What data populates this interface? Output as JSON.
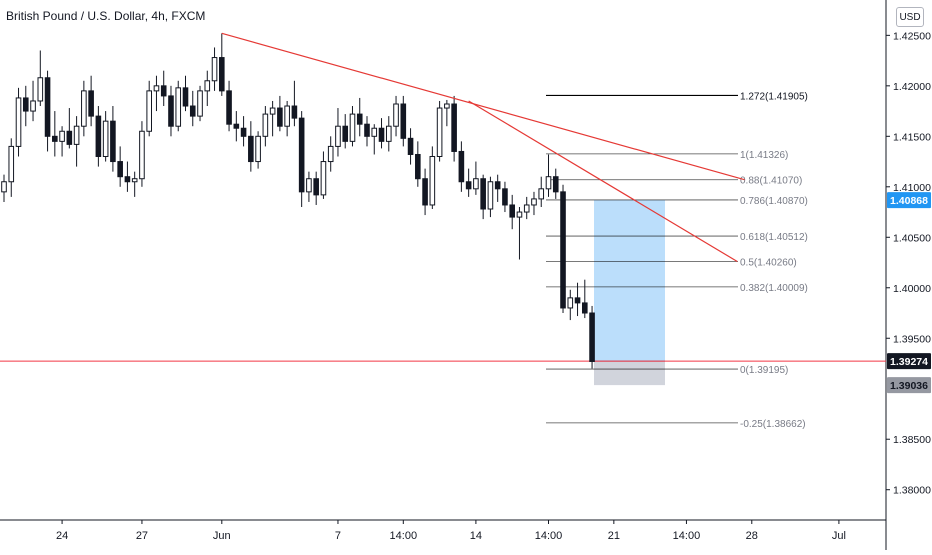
{
  "header": {
    "title": "British Pound / U.S. Dollar, 4h, FXCM",
    "currency": "USD"
  },
  "chart_data": {
    "type": "candlestick",
    "symbol": "GBPUSD",
    "interval": "4h",
    "ylim": [
      1.377,
      1.4285
    ],
    "y_ticks": [
      "1.42500",
      "1.42000",
      "1.41500",
      "1.41000",
      "1.40500",
      "1.40000",
      "1.39500",
      "1.38500",
      "1.38000"
    ],
    "x_ticks": [
      {
        "label": "24",
        "i": 8
      },
      {
        "label": "27",
        "i": 19
      },
      {
        "label": "Jun",
        "i": 30
      },
      {
        "label": "7",
        "i": 46
      },
      {
        "label": "14:00",
        "i": 55
      },
      {
        "label": "14",
        "i": 65
      },
      {
        "label": "14:00",
        "i": 75
      },
      {
        "label": "21",
        "i": 84
      },
      {
        "label": "14:00",
        "i": 94
      },
      {
        "label": "28",
        "i": 103
      },
      {
        "label": "Jul",
        "i": 115
      }
    ],
    "ohlc": [
      [
        1.4095,
        1.4112,
        1.4085,
        1.4105
      ],
      [
        1.4105,
        1.4148,
        1.409,
        1.414
      ],
      [
        1.414,
        1.4198,
        1.413,
        1.4188
      ],
      [
        1.4188,
        1.42,
        1.416,
        1.4175
      ],
      [
        1.4175,
        1.4205,
        1.4165,
        1.4185
      ],
      [
        1.4185,
        1.4235,
        1.418,
        1.4208
      ],
      [
        1.4208,
        1.4215,
        1.4135,
        1.415
      ],
      [
        1.415,
        1.4175,
        1.413,
        1.4145
      ],
      [
        1.4145,
        1.416,
        1.413,
        1.4155
      ],
      [
        1.4155,
        1.4178,
        1.4138,
        1.4142
      ],
      [
        1.4142,
        1.417,
        1.412,
        1.416
      ],
      [
        1.416,
        1.4205,
        1.415,
        1.4195
      ],
      [
        1.4195,
        1.421,
        1.416,
        1.417
      ],
      [
        1.417,
        1.418,
        1.412,
        1.413
      ],
      [
        1.413,
        1.4175,
        1.4125,
        1.4165
      ],
      [
        1.4165,
        1.418,
        1.4115,
        1.4125
      ],
      [
        1.4125,
        1.414,
        1.41,
        1.411
      ],
      [
        1.411,
        1.4125,
        1.4095,
        1.4105
      ],
      [
        1.4105,
        1.4115,
        1.409,
        1.4108
      ],
      [
        1.4108,
        1.4165,
        1.41,
        1.4155
      ],
      [
        1.4155,
        1.4205,
        1.415,
        1.4195
      ],
      [
        1.4195,
        1.421,
        1.4175,
        1.42
      ],
      [
        1.42,
        1.4215,
        1.418,
        1.419
      ],
      [
        1.419,
        1.42,
        1.415,
        1.416
      ],
      [
        1.416,
        1.4205,
        1.4155,
        1.4198
      ],
      [
        1.4198,
        1.421,
        1.4175,
        1.418
      ],
      [
        1.418,
        1.4195,
        1.416,
        1.417
      ],
      [
        1.417,
        1.42,
        1.4165,
        1.4195
      ],
      [
        1.4195,
        1.4215,
        1.418,
        1.4205
      ],
      [
        1.4205,
        1.4238,
        1.4195,
        1.4228
      ],
      [
        1.4228,
        1.4252,
        1.419,
        1.4195
      ],
      [
        1.4195,
        1.4205,
        1.4155,
        1.4162
      ],
      [
        1.4162,
        1.4175,
        1.4145,
        1.4158
      ],
      [
        1.4158,
        1.417,
        1.414,
        1.415
      ],
      [
        1.415,
        1.4165,
        1.4115,
        1.4125
      ],
      [
        1.4125,
        1.4155,
        1.4118,
        1.415
      ],
      [
        1.415,
        1.418,
        1.414,
        1.4172
      ],
      [
        1.4172,
        1.4185,
        1.415,
        1.4178
      ],
      [
        1.4178,
        1.419,
        1.4155,
        1.416
      ],
      [
        1.416,
        1.4185,
        1.415,
        1.418
      ],
      [
        1.418,
        1.4205,
        1.416,
        1.4168
      ],
      [
        1.4168,
        1.4175,
        1.408,
        1.4095
      ],
      [
        1.4095,
        1.4115,
        1.4085,
        1.4108
      ],
      [
        1.4108,
        1.4115,
        1.4082,
        1.4092
      ],
      [
        1.4092,
        1.4135,
        1.4088,
        1.4125
      ],
      [
        1.4125,
        1.415,
        1.4115,
        1.414
      ],
      [
        1.414,
        1.4178,
        1.413,
        1.416
      ],
      [
        1.416,
        1.4172,
        1.4138,
        1.4145
      ],
      [
        1.4145,
        1.418,
        1.414,
        1.4172
      ],
      [
        1.4172,
        1.4188,
        1.415,
        1.4162
      ],
      [
        1.4162,
        1.417,
        1.414,
        1.415
      ],
      [
        1.415,
        1.4162,
        1.4132,
        1.4158
      ],
      [
        1.4158,
        1.4168,
        1.4138,
        1.4145
      ],
      [
        1.4145,
        1.417,
        1.4135,
        1.416
      ],
      [
        1.416,
        1.419,
        1.415,
        1.4182
      ],
      [
        1.4182,
        1.419,
        1.414,
        1.4148
      ],
      [
        1.4148,
        1.4158,
        1.4122,
        1.4132
      ],
      [
        1.4132,
        1.4145,
        1.41,
        1.4108
      ],
      [
        1.4108,
        1.4118,
        1.4072,
        1.4082
      ],
      [
        1.4082,
        1.414,
        1.4078,
        1.413
      ],
      [
        1.413,
        1.4185,
        1.4125,
        1.4178
      ],
      [
        1.4178,
        1.4186,
        1.416,
        1.4182
      ],
      [
        1.4182,
        1.419,
        1.4125,
        1.4135
      ],
      [
        1.4135,
        1.4145,
        1.4095,
        1.4105
      ],
      [
        1.4105,
        1.4118,
        1.409,
        1.4098
      ],
      [
        1.4098,
        1.4125,
        1.4092,
        1.4108
      ],
      [
        1.4108,
        1.4112,
        1.4068,
        1.4078
      ],
      [
        1.4078,
        1.411,
        1.407,
        1.4105
      ],
      [
        1.4105,
        1.4112,
        1.4085,
        1.4098
      ],
      [
        1.4098,
        1.4105,
        1.4075,
        1.4082
      ],
      [
        1.4082,
        1.4092,
        1.4058,
        1.407
      ],
      [
        1.407,
        1.408,
        1.4028,
        1.4075
      ],
      [
        1.4075,
        1.409,
        1.4068,
        1.4082
      ],
      [
        1.4082,
        1.4095,
        1.4072,
        1.4088
      ],
      [
        1.4088,
        1.411,
        1.408,
        1.4098
      ],
      [
        1.4098,
        1.4132,
        1.409,
        1.411
      ],
      [
        1.411,
        1.4118,
        1.4088,
        1.4095
      ],
      [
        1.4095,
        1.4102,
        1.3975,
        1.398
      ],
      [
        1.398,
        1.3998,
        1.3968,
        1.399
      ],
      [
        1.399,
        1.4005,
        1.3972,
        1.3985
      ],
      [
        1.3985,
        1.4008,
        1.397,
        1.3975
      ],
      [
        1.3975,
        1.3982,
        1.392,
        1.3927
      ]
    ],
    "trendlines": [
      {
        "from": [
          30,
          1.4252
        ],
        "to": [
          102,
          1.4107
        ],
        "color": "#e53935"
      },
      {
        "from": [
          64,
          1.4185
        ],
        "to": [
          101,
          1.4026
        ],
        "color": "#e53935"
      }
    ],
    "fibonacci": {
      "color": "#000000",
      "levels": [
        {
          "label": "1.272(1.41905)",
          "value": 1.41905
        },
        {
          "label": "1(1.41326)",
          "value": 1.41326
        },
        {
          "label": "0.88(1.41070)",
          "value": 1.4107
        },
        {
          "label": "0.786(1.40870)",
          "value": 1.4087
        },
        {
          "label": "0.618(1.40512)",
          "value": 1.40512
        },
        {
          "label": "0.5(1.40260)",
          "value": 1.4026
        },
        {
          "label": "0.382(1.40009)",
          "value": 1.40009
        },
        {
          "label": "0(1.39195)",
          "value": 1.39195
        },
        {
          "label": "-0.25(1.38662)",
          "value": 1.38662
        }
      ]
    },
    "position": {
      "entry": 1.39274,
      "target": 1.40868,
      "stop": 1.39036,
      "profit_color": "#bbdefb",
      "loss_color": "#d1d4dc"
    },
    "current_price_line": {
      "value": 1.39274,
      "color": "#f23645"
    },
    "price_labels": [
      {
        "text": "1.40868",
        "value": 1.40868,
        "bg": "#2196f3",
        "fg": "#ffffff"
      },
      {
        "text": "1.39274",
        "value": 1.39274,
        "bg": "#131722",
        "fg": "#ffffff"
      },
      {
        "text": "1.39036",
        "value": 1.39036,
        "bg": "#9598a1",
        "fg": "#131722"
      }
    ],
    "colors": {
      "up": "#131722",
      "down": "#131722",
      "grid": "#f0f3fa",
      "axis": "#131722",
      "axis_text": "#131722"
    }
  }
}
